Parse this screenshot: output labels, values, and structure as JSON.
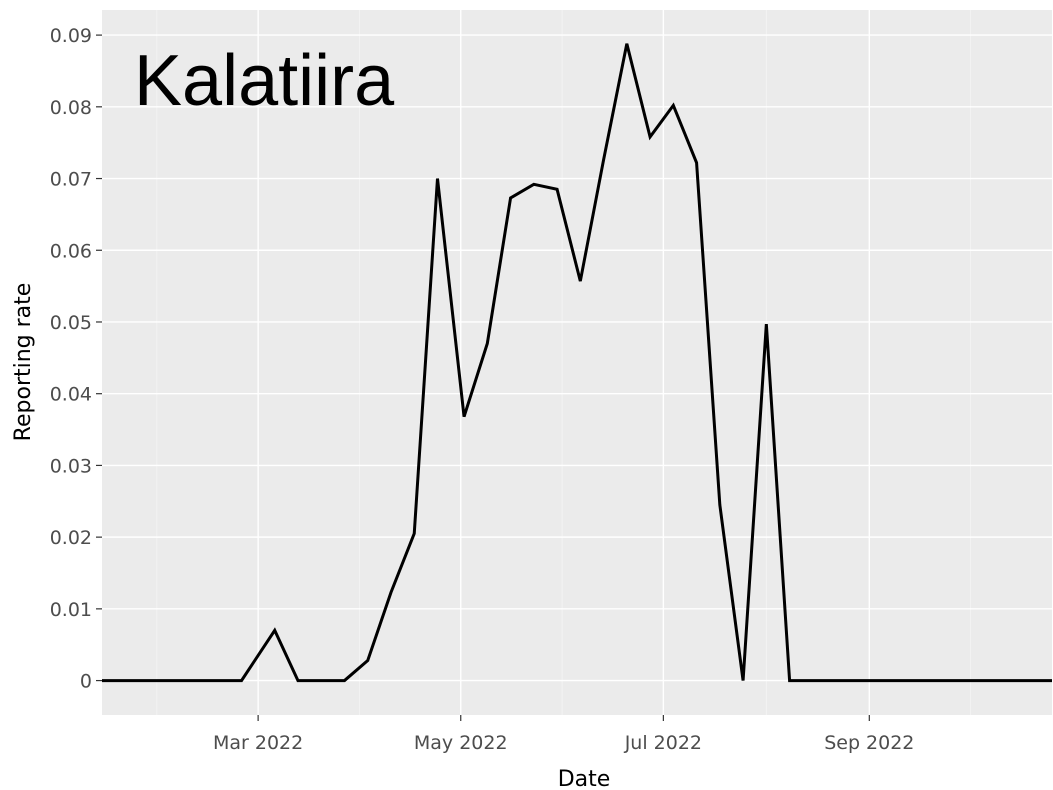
{
  "chart_data": {
    "type": "line",
    "title": "Kalatiira",
    "xlabel": "Date",
    "ylabel": "Reporting rate",
    "x_ticks": [
      {
        "label": "Mar 2022",
        "date": "2022-03-01"
      },
      {
        "label": "May 2022",
        "date": "2022-05-01"
      },
      {
        "label": "Jul 2022",
        "date": "2022-07-01"
      },
      {
        "label": "Sep 2022",
        "date": "2022-09-01"
      }
    ],
    "y_ticks": [
      {
        "label": "0",
        "value": 0
      },
      {
        "label": "0.01",
        "value": 0.01
      },
      {
        "label": "0.02",
        "value": 0.02
      },
      {
        "label": "0.03",
        "value": 0.03
      },
      {
        "label": "0.04",
        "value": 0.04
      },
      {
        "label": "0.05",
        "value": 0.05
      },
      {
        "label": "0.06",
        "value": 0.06
      },
      {
        "label": "0.07",
        "value": 0.07
      },
      {
        "label": "0.08",
        "value": 0.08
      },
      {
        "label": "0.09",
        "value": 0.09
      }
    ],
    "xlim": [
      "2022-01-13",
      "2022-10-26"
    ],
    "ylim": [
      -0.0048,
      0.0935
    ],
    "grid": true,
    "legend": "none",
    "colors": {
      "panel": "#ebebeb",
      "grid": "#ffffff",
      "line": "#000000"
    },
    "series": [
      {
        "x": [
          "2022-01-13",
          "2022-01-20",
          "2022-01-27",
          "2022-02-03",
          "2022-02-10",
          "2022-02-17",
          "2022-02-24",
          "2022-03-06",
          "2022-03-13",
          "2022-03-20",
          "2022-03-27",
          "2022-04-03",
          "2022-04-10",
          "2022-04-17",
          "2022-04-24",
          "2022-05-02",
          "2022-05-09",
          "2022-05-16",
          "2022-05-23",
          "2022-05-30",
          "2022-06-06",
          "2022-06-13",
          "2022-06-20",
          "2022-06-27",
          "2022-07-04",
          "2022-07-11",
          "2022-07-18",
          "2022-07-25",
          "2022-08-01",
          "2022-08-08",
          "2022-08-15",
          "2022-08-22",
          "2022-08-29",
          "2022-09-05",
          "2022-09-12",
          "2022-09-19",
          "2022-09-26",
          "2022-10-03",
          "2022-10-10",
          "2022-10-17",
          "2022-10-26"
        ],
        "values": [
          0,
          0,
          0,
          0,
          0,
          0,
          0,
          0.007,
          0,
          0,
          0,
          0.0028,
          0.0123,
          0.0205,
          0.07,
          0.0368,
          0.047,
          0.0673,
          0.0692,
          0.0685,
          0.0557,
          0.0726,
          0.0888,
          0.0758,
          0.0802,
          0.0722,
          0.0245,
          0,
          0.0497,
          0,
          0,
          0,
          0,
          0,
          0,
          0,
          0,
          0,
          0,
          0,
          0
        ]
      }
    ]
  }
}
